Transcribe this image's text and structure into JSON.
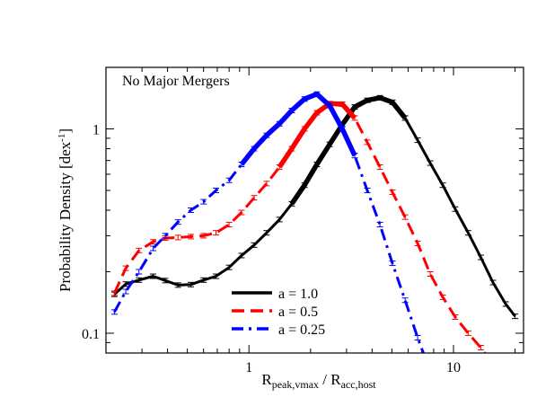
{
  "chart_data": {
    "type": "line",
    "title": "",
    "annotation": "No Major Mergers",
    "xlabel": {
      "main": "R",
      "sub1": "peak,vmax",
      "sep": " / R",
      "sub2": "acc,host"
    },
    "ylabel": {
      "main": "Probability Density [dex",
      "sup": "-1",
      "close": "]"
    },
    "x_scale": "log",
    "y_scale": "log",
    "xlim": [
      0.2,
      22
    ],
    "ylim": [
      0.08,
      2.0
    ],
    "x_tick_labels": [
      {
        "value": 1,
        "label": "1"
      },
      {
        "value": 10,
        "label": "10"
      }
    ],
    "y_tick_labels": [
      {
        "value": 0.1,
        "label": "0.1"
      },
      {
        "value": 1,
        "label": "1"
      }
    ],
    "legend_position": "bottom-center",
    "series": [
      {
        "name": "a = 1.0",
        "color": "#000000",
        "style": "solid",
        "x": [
          0.22,
          0.25,
          0.29,
          0.34,
          0.39,
          0.45,
          0.52,
          0.6,
          0.69,
          0.8,
          0.92,
          1.06,
          1.22,
          1.41,
          1.62,
          1.87,
          2.15,
          2.48,
          2.86,
          3.29,
          3.79,
          4.37,
          5.03,
          5.8,
          6.68,
          7.7,
          8.87,
          10.2,
          11.8,
          13.6,
          15.6,
          18.0,
          20.0
        ],
        "y": [
          0.155,
          0.174,
          0.182,
          0.19,
          0.181,
          0.172,
          0.173,
          0.182,
          0.19,
          0.21,
          0.24,
          0.27,
          0.31,
          0.36,
          0.43,
          0.53,
          0.67,
          0.84,
          1.05,
          1.28,
          1.38,
          1.42,
          1.35,
          1.13,
          0.88,
          0.68,
          0.53,
          0.405,
          0.31,
          0.235,
          0.177,
          0.139,
          0.121
        ],
        "thick_range": [
          1.6,
          6.0
        ]
      },
      {
        "name": "a = 0.5",
        "color": "#ff0000",
        "style": "dashed",
        "x": [
          0.22,
          0.25,
          0.29,
          0.34,
          0.39,
          0.45,
          0.52,
          0.6,
          0.69,
          0.8,
          0.92,
          1.06,
          1.22,
          1.41,
          1.62,
          1.87,
          2.15,
          2.48,
          2.86,
          3.29,
          3.79,
          4.37,
          5.03,
          5.8,
          6.68,
          7.7,
          8.87,
          10.2,
          11.8,
          13.6,
          15.6
        ],
        "y": [
          0.157,
          0.208,
          0.254,
          0.28,
          0.292,
          0.294,
          0.297,
          0.3,
          0.31,
          0.34,
          0.39,
          0.46,
          0.54,
          0.65,
          0.8,
          1.0,
          1.2,
          1.33,
          1.32,
          1.13,
          0.86,
          0.65,
          0.49,
          0.37,
          0.275,
          0.195,
          0.15,
          0.12,
          0.1,
          0.085,
          0.07
        ],
        "thick_range": [
          1.4,
          3.6
        ]
      },
      {
        "name": "a = 0.25",
        "color": "#0000ff",
        "style": "dashdot",
        "x": [
          0.22,
          0.25,
          0.29,
          0.34,
          0.39,
          0.45,
          0.52,
          0.6,
          0.69,
          0.8,
          0.92,
          1.06,
          1.22,
          1.41,
          1.62,
          1.87,
          2.15,
          2.48,
          2.86,
          3.29,
          3.79,
          4.37,
          5.03,
          5.8,
          6.68,
          7.7
        ],
        "y": [
          0.127,
          0.16,
          0.2,
          0.26,
          0.3,
          0.35,
          0.4,
          0.44,
          0.5,
          0.56,
          0.67,
          0.8,
          0.93,
          1.06,
          1.23,
          1.4,
          1.48,
          1.3,
          1.0,
          0.74,
          0.5,
          0.34,
          0.22,
          0.145,
          0.095,
          0.065
        ],
        "thick_range": [
          0.85,
          3.3
        ]
      }
    ]
  }
}
